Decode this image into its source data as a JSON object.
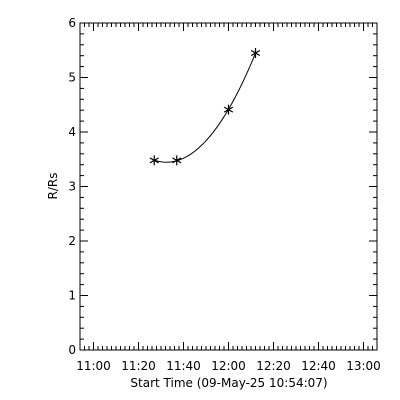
{
  "chart_data": {
    "type": "scatter",
    "title": "",
    "xlabel": "Start Time (09-May-25 10:54:07)",
    "ylabel": "R/Rs",
    "x_ticks": [
      "11:00",
      "11:20",
      "11:40",
      "12:00",
      "12:20",
      "12:40",
      "13:00"
    ],
    "xlim": [
      "10:54",
      "13:06"
    ],
    "y_ticks": [
      "0",
      "1",
      "2",
      "3",
      "4",
      "5",
      "6"
    ],
    "ylim": [
      0,
      6
    ],
    "grid": false,
    "legend": "none",
    "marker": "asterisk",
    "color": "#000000",
    "points": [
      {
        "x": "11:27",
        "y": 3.48
      },
      {
        "x": "11:37",
        "y": 3.48
      },
      {
        "x": "12:00",
        "y": 4.41
      },
      {
        "x": "12:12",
        "y": 5.45
      }
    ],
    "fit_curve": "quadratic"
  }
}
